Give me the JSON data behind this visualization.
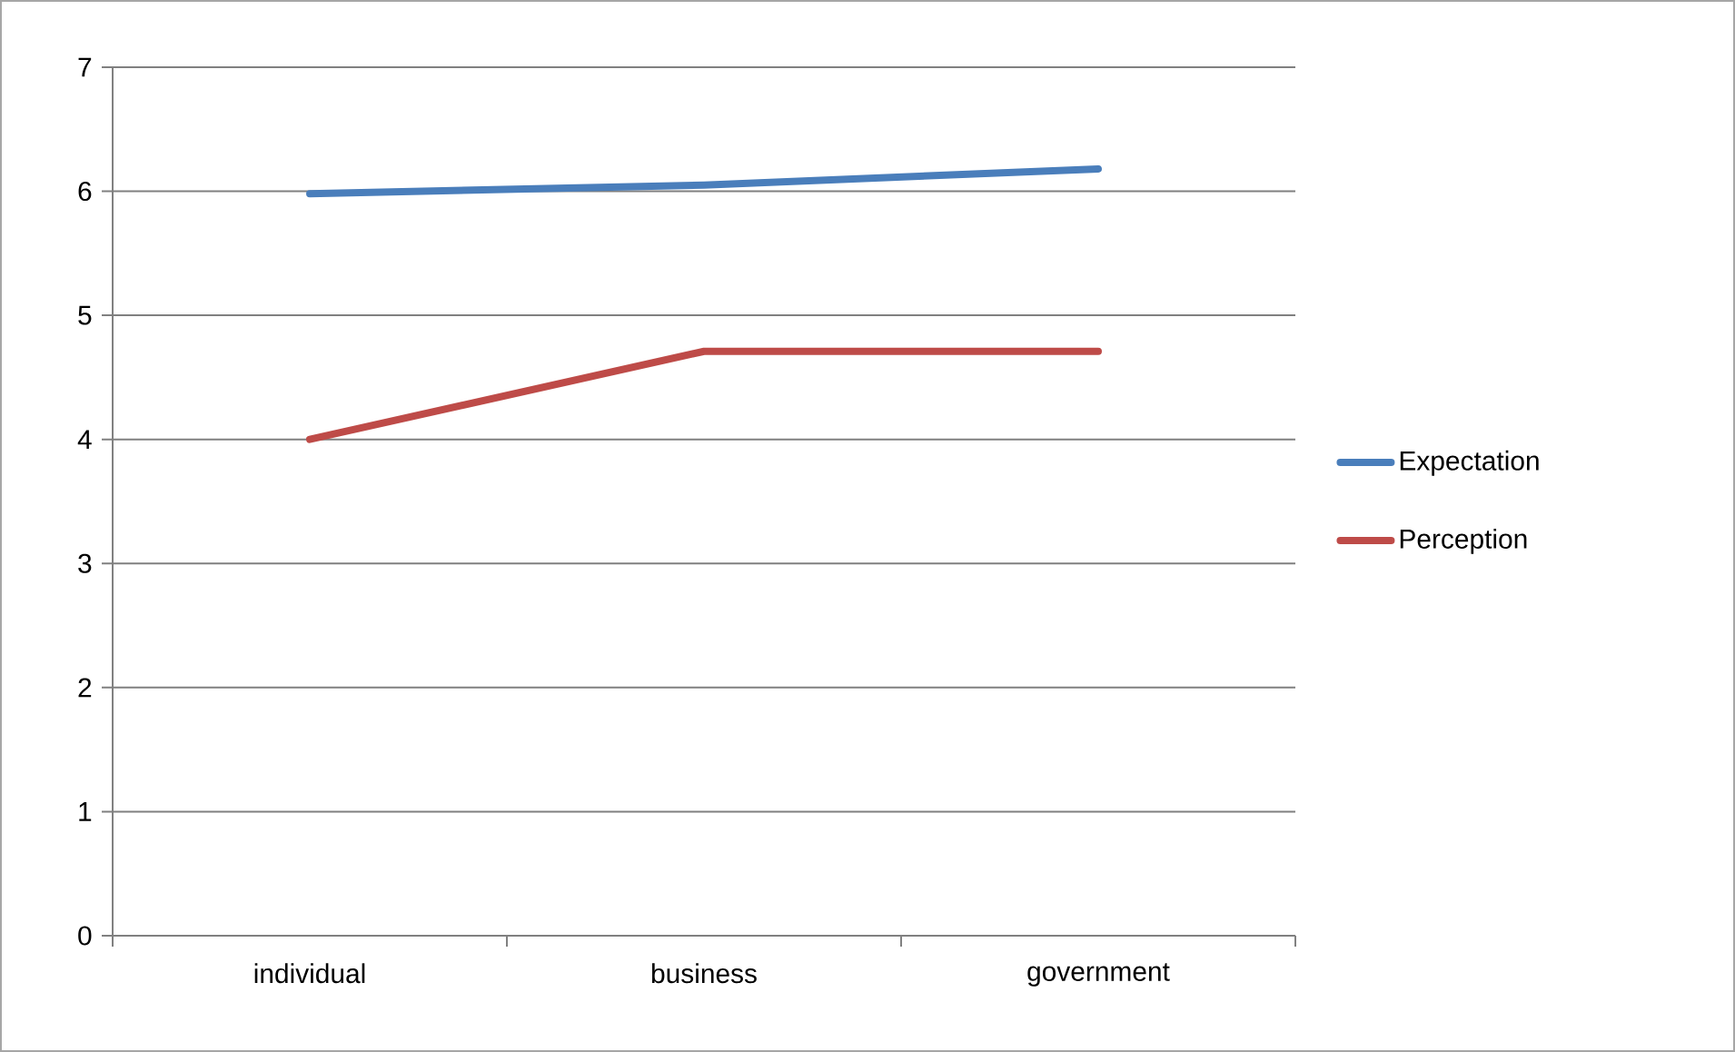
{
  "chart_data": {
    "type": "line",
    "categories": [
      "individual",
      "business",
      "government"
    ],
    "series": [
      {
        "name": "Expectation",
        "color": "#4a7ebb",
        "values": [
          5.98,
          6.05,
          6.18
        ]
      },
      {
        "name": "Perception",
        "color": "#be4b48",
        "values": [
          4.0,
          4.71,
          4.71
        ]
      }
    ],
    "ylim": [
      0,
      7
    ],
    "yticks": [
      0,
      1,
      2,
      3,
      4,
      5,
      6,
      7
    ],
    "grid": "y",
    "legend": "right",
    "marker": "none",
    "line_style": "solid"
  }
}
